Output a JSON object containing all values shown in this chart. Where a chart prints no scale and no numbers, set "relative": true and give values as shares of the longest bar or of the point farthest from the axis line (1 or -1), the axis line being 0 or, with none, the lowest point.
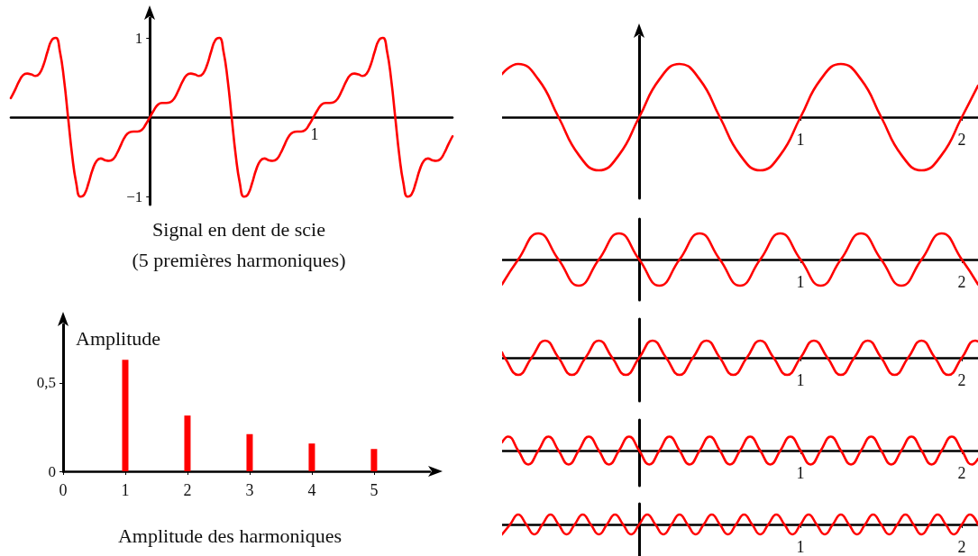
{
  "chart_data": [
    {
      "type": "line",
      "title": "Signal en dent de scie",
      "subtitle": "(5 premières harmoniques)",
      "color": "#ff0000",
      "marker": "none",
      "annotations": [
        "1"
      ],
      "categories": [
        null,
        null,
        null,
        null,
        null,
        null,
        null,
        null,
        null,
        null,
        null,
        null,
        null,
        null,
        null,
        null,
        null,
        null,
        null,
        null,
        null,
        null,
        null,
        null,
        null,
        null,
        null,
        null,
        null,
        null,
        null,
        null,
        null,
        null,
        null,
        null,
        null,
        null,
        null,
        null,
        null,
        null,
        null,
        null,
        null,
        null,
        null,
        null,
        null,
        null,
        null,
        null,
        null,
        null,
        null,
        null,
        null,
        null,
        null,
        null,
        null,
        null,
        null,
        null,
        null,
        null,
        null,
        null,
        null,
        null,
        null,
        null,
        null,
        null,
        null,
        null,
        null,
        null,
        null,
        null,
        null,
        null,
        null,
        null,
        null,
        null,
        null,
        null,
        null,
        null,
        null,
        null,
        null,
        null,
        null,
        null,
        null,
        null,
        null,
        null,
        null,
        null,
        null,
        null,
        null,
        null,
        null,
        null,
        null
      ],
      "ylim": [
        -1.1,
        1.25
      ],
      "yticks": [
        {
          "value": -1,
          "label": "−1"
        },
        1
      ],
      "values": [
        0.24,
        0.34,
        0.45,
        0.53,
        0.55,
        0.54,
        0.52,
        0.55,
        0.66,
        0.83,
        0.97,
        1.0,
        0.83,
        0.48,
        0,
        -0.48,
        -0.83,
        -1.0,
        -0.97,
        -0.83,
        -0.66,
        -0.55,
        -0.52,
        -0.54,
        -0.55,
        -0.53,
        -0.45,
        -0.34,
        -0.24,
        -0.19,
        -0.18,
        -0.18,
        -0.16,
        -0.09,
        0,
        0.09,
        0.16,
        0.18,
        0.18,
        0.19,
        0.24,
        0.34,
        0.45,
        0.53,
        0.55,
        0.54,
        0.52,
        0.55,
        0.66,
        0.83,
        0.97,
        1.0,
        0.83,
        0.48,
        0,
        -0.48,
        -0.83,
        -1.0,
        -0.97,
        -0.83,
        -0.66,
        -0.55,
        -0.52,
        -0.54,
        -0.55,
        -0.53,
        -0.45,
        -0.34,
        -0.24,
        -0.19,
        -0.18,
        -0.18,
        -0.16,
        -0.09,
        0,
        0.09,
        0.16,
        0.18,
        0.18,
        0.19,
        0.24,
        0.34,
        0.45,
        0.53,
        0.55,
        0.54,
        0.52,
        0.55,
        0.66,
        0.83,
        0.97,
        1.0,
        0.83,
        0.48,
        0,
        -0.48,
        -0.83,
        -1.0,
        -0.97,
        -0.83,
        -0.66,
        -0.55,
        -0.52,
        -0.54,
        -0.55,
        -0.53,
        -0.45,
        -0.34,
        -0.24
      ]
    },
    {
      "type": "bar",
      "title": "Amplitude des harmoniques",
      "ylabel": "Amplitude",
      "color": "#ff0000",
      "x": [
        1,
        2,
        3,
        4,
        5
      ],
      "values": [
        0.63,
        0.315,
        0.21,
        0.157,
        0.126
      ],
      "xlim": [
        0,
        5.9
      ],
      "ylim": [
        0,
        0.83
      ],
      "xticks": [
        0,
        1,
        2,
        3,
        4,
        5
      ],
      "yticks": [
        0,
        {
          "value": 0.5,
          "label": "0,5"
        }
      ]
    },
    {
      "type": "line",
      "relative": true,
      "color": "#ff0000",
      "marker": "none",
      "xlim": [
        -0.85,
        2.1
      ],
      "xticks": [
        1,
        2
      ],
      "x": [
        -0.85,
        -0.75,
        -0.625,
        -0.5,
        -0.375,
        -0.25,
        -0.125,
        0,
        0.125,
        0.25,
        0.375,
        0.5,
        0.625,
        0.75,
        0.875,
        1,
        1.125,
        1.25,
        1.375,
        1.5,
        1.625,
        1.75,
        1.875,
        2,
        2.1
      ],
      "values": [
        0.81,
        1,
        0.71,
        0,
        -0.71,
        -1,
        -0.71,
        0,
        0.71,
        1,
        0.71,
        0,
        -0.71,
        -1,
        -0.71,
        0,
        0.71,
        1,
        0.71,
        0,
        -0.71,
        -1,
        -0.71,
        0,
        0.59
      ]
    },
    {
      "type": "line",
      "relative": true,
      "color": "#ff0000",
      "marker": "none",
      "xlim": [
        -0.85,
        2.1
      ],
      "xticks": [
        1,
        2
      ],
      "x": [
        -0.85,
        -0.75,
        -0.625,
        -0.5,
        -0.375,
        -0.25,
        -0.125,
        0,
        0.125,
        0.25,
        0.375,
        0.5,
        0.625,
        0.75,
        0.875,
        1,
        1.125,
        1.25,
        1.375,
        1.5,
        1.625,
        1.75,
        1.875,
        2,
        2.1
      ],
      "values": [
        -0.95,
        0,
        1,
        0,
        -1,
        0,
        1,
        0,
        -1,
        0,
        1,
        0,
        -1,
        0,
        1,
        0,
        -1,
        0,
        1,
        0,
        -1,
        0,
        1,
        0,
        -0.95
      ]
    },
    {
      "type": "line",
      "relative": true,
      "color": "#ff0000",
      "marker": "none",
      "xlim": [
        -0.85,
        2.1
      ],
      "xticks": [
        1,
        2
      ],
      "x": [
        -0.85,
        -0.833,
        -0.75,
        -0.667,
        -0.583,
        -0.5,
        -0.417,
        -0.333,
        -0.25,
        -0.167,
        -0.083,
        0,
        0.083,
        0.167,
        0.25,
        0.333,
        0.417,
        0.5,
        0.583,
        0.667,
        0.75,
        0.833,
        0.917,
        1,
        1.083,
        1.167,
        1.25,
        1.333,
        1.417,
        1.5,
        1.583,
        1.667,
        1.75,
        1.833,
        1.917,
        2,
        2.083,
        2.1
      ],
      "values": [
        0.31,
        0,
        -1,
        0,
        1,
        0,
        -1,
        0,
        1,
        0,
        -1,
        0,
        1,
        0,
        -1,
        0,
        1,
        0,
        -1,
        0,
        1,
        0,
        -1,
        0,
        1,
        0,
        -1,
        0,
        1,
        0,
        -1,
        0,
        1,
        0,
        -1,
        0,
        1,
        0.95
      ]
    },
    {
      "type": "line",
      "relative": true,
      "color": "#ff0000",
      "marker": "none",
      "xlim": [
        -0.85,
        2.1
      ],
      "xticks": [
        1,
        2
      ],
      "x": [
        -0.85,
        -0.8125,
        -0.75,
        -0.6875,
        -0.625,
        -0.5625,
        -0.5,
        -0.4375,
        -0.375,
        -0.3125,
        -0.25,
        -0.1875,
        -0.125,
        -0.0625,
        0,
        0.0625,
        0.125,
        0.1875,
        0.25,
        0.3125,
        0.375,
        0.4375,
        0.5,
        0.5625,
        0.625,
        0.6875,
        0.75,
        0.8125,
        0.875,
        0.9375,
        1,
        1.0625,
        1.125,
        1.1875,
        1.25,
        1.3125,
        1.375,
        1.4375,
        1.5,
        1.5625,
        1.625,
        1.6875,
        1.75,
        1.8125,
        1.875,
        1.9375,
        2,
        2.0625,
        2.1
      ],
      "values": [
        0.59,
        1,
        0,
        -1,
        0,
        1,
        0,
        -1,
        0,
        1,
        0,
        -1,
        0,
        1,
        0,
        -1,
        0,
        1,
        0,
        -1,
        0,
        1,
        0,
        -1,
        0,
        1,
        0,
        -1,
        0,
        1,
        0,
        -1,
        0,
        1,
        0,
        -1,
        0,
        1,
        0,
        -1,
        0,
        1,
        0,
        -1,
        0,
        1,
        0,
        -1,
        -0.59
      ]
    },
    {
      "type": "line",
      "relative": true,
      "color": "#ff0000",
      "marker": "none",
      "xlim": [
        -0.85,
        2.1
      ],
      "xticks": [
        1,
        2
      ],
      "x": [
        -0.85,
        -0.8,
        -0.75,
        -0.7,
        -0.65,
        -0.6,
        -0.55,
        -0.5,
        -0.45,
        -0.4,
        -0.35,
        -0.3,
        -0.25,
        -0.2,
        -0.15,
        -0.1,
        -0.05,
        0,
        0.05,
        0.1,
        0.15,
        0.2,
        0.25,
        0.3,
        0.35,
        0.4,
        0.45,
        0.5,
        0.55,
        0.6,
        0.65,
        0.7,
        0.75,
        0.8,
        0.85,
        0.9,
        0.95,
        1,
        1.05,
        1.1,
        1.15,
        1.2,
        1.25,
        1.3,
        1.35,
        1.4,
        1.45,
        1.5,
        1.55,
        1.6,
        1.65,
        1.7,
        1.75,
        1.8,
        1.85,
        1.9,
        1.95,
        2,
        2.05,
        2.1
      ],
      "values": [
        -1,
        0,
        1,
        0,
        -1,
        0,
        1,
        0,
        -1,
        0,
        1,
        0,
        -1,
        0,
        1,
        0,
        -1,
        0,
        1,
        0,
        -1,
        0,
        1,
        0,
        -1,
        0,
        1,
        0,
        -1,
        0,
        1,
        0,
        -1,
        0,
        1,
        0,
        -1,
        0,
        1,
        0,
        -1,
        0,
        1,
        0,
        -1,
        0,
        1,
        0,
        -1,
        0,
        1,
        0,
        -1,
        0,
        1,
        0,
        -1,
        0,
        1,
        0
      ]
    }
  ]
}
